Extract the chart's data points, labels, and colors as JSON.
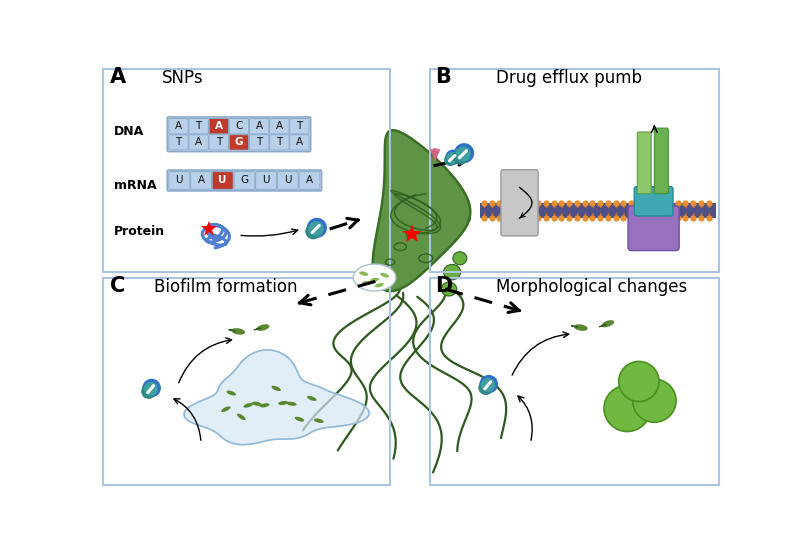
{
  "panel_A_label": "A",
  "panel_A_title": "SNPs",
  "panel_B_label": "B",
  "panel_B_title": "Drug efflux pumb",
  "panel_C_label": "C",
  "panel_C_title": "Biofilm formation",
  "panel_D_label": "D",
  "panel_D_title": "Morphological changes",
  "panel_border_color": "#aac4e0",
  "bg_color": "#ffffff",
  "dna_row1": [
    "A",
    "T",
    "A",
    "C",
    "A",
    "A",
    "T"
  ],
  "dna_row2": [
    "T",
    "A",
    "T",
    "G",
    "T",
    "T",
    "A"
  ],
  "mrna_seq": [
    "U",
    "A",
    "U",
    "G",
    "U",
    "U",
    "A"
  ],
  "cell_body_color": "#5a9040",
  "cell_dark_color": "#2d6020",
  "cell_border_color": "#3a7025",
  "flagella_color": "#2d5a1e",
  "granule_white": "#f0f4f8",
  "bud_green": "#6ab040",
  "pump_gray": "#c8c8c8",
  "pump_green1": "#8cc86a",
  "pump_green2": "#6ab050",
  "pump_teal": "#40a8b0",
  "pump_purple": "#9870c0",
  "membrane_dark": "#505088",
  "orange_head": "#e89030",
  "drug_teal1": "#308888",
  "drug_teal2": "#40a0a0",
  "drug_blue": "#3070c8",
  "protein_blue": "#5080d0",
  "biofilm_blob": "#d5e8f5",
  "biofilm_border": "#90b8d8",
  "bact_green": "#5a8830",
  "coccoid_green": "#70b840",
  "coccoid_border": "#4a9020"
}
